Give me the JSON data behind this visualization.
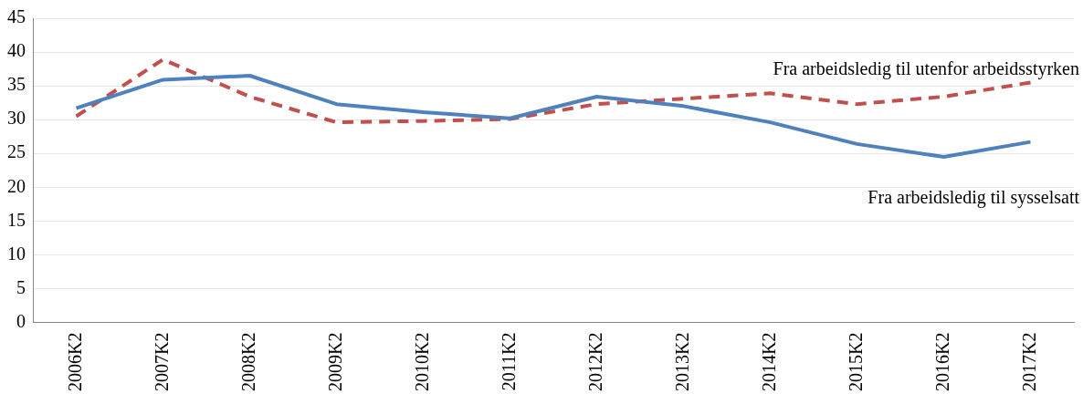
{
  "chart_data": {
    "type": "line",
    "categories": [
      "2006K2",
      "2007K2",
      "2008K2",
      "2009K2",
      "2010K2",
      "2011K2",
      "2012K2",
      "2013K2",
      "2014K2",
      "2015K2",
      "2016K2",
      "2017K2"
    ],
    "series": [
      {
        "name": "Fra arbeidsledig til sysselsatt",
        "color": "#4f81bd",
        "line_style": "solid",
        "values": [
          31.7,
          35.9,
          36.5,
          32.3,
          31.1,
          30.2,
          33.4,
          32.0,
          29.6,
          26.4,
          24.5,
          26.7
        ]
      },
      {
        "name": "Fra arbeidsledig til utenfor arbeidsstyrken",
        "color": "#c0504d",
        "line_style": "dashed",
        "values": [
          30.5,
          38.9,
          33.4,
          29.6,
          29.8,
          30.1,
          32.3,
          33.1,
          33.9,
          32.3,
          33.4,
          35.5
        ]
      }
    ],
    "ylim": [
      0,
      45
    ],
    "yticks": [
      0,
      5,
      10,
      15,
      20,
      25,
      30,
      35,
      40,
      45
    ],
    "grid": "y",
    "legend": false,
    "marker": "none"
  }
}
